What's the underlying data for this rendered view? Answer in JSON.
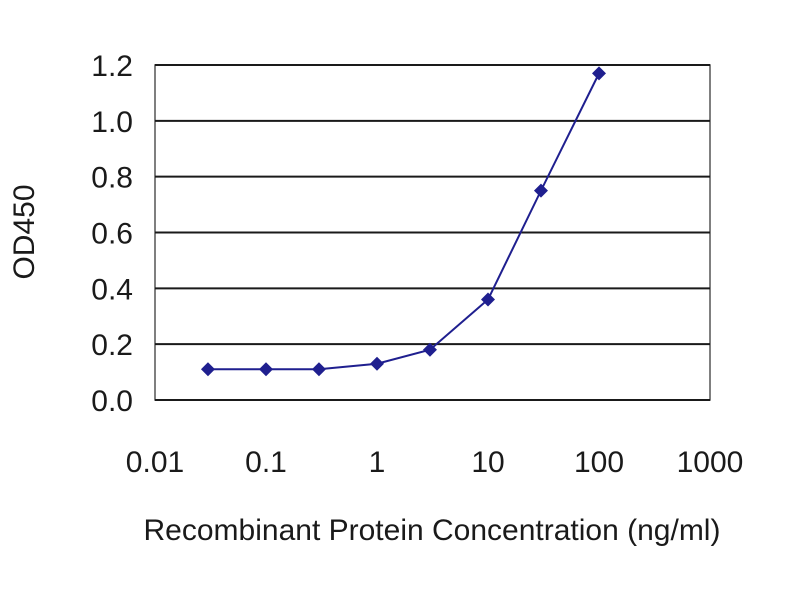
{
  "chart_data": {
    "type": "line",
    "title": "",
    "xlabel": "Recombinant Protein Concentration (ng/ml)",
    "ylabel": "OD450",
    "x_scale": "log",
    "xlim": [
      0.01,
      1000
    ],
    "ylim": [
      0.0,
      1.2
    ],
    "x_ticks": [
      "0.01",
      "0.1",
      "1",
      "10",
      "100",
      "1000"
    ],
    "y_ticks": [
      "0.0",
      "0.2",
      "0.4",
      "0.6",
      "0.8",
      "1.0",
      "1.2"
    ],
    "grid": "horizontal",
    "legend": "none",
    "series": [
      {
        "color": "#1f1f8f",
        "marker": "diamond",
        "x": [
          0.03,
          0.1,
          0.3,
          1,
          3,
          10,
          30,
          100
        ],
        "y": [
          0.11,
          0.11,
          0.11,
          0.13,
          0.18,
          0.36,
          0.75,
          1.17
        ]
      }
    ]
  }
}
